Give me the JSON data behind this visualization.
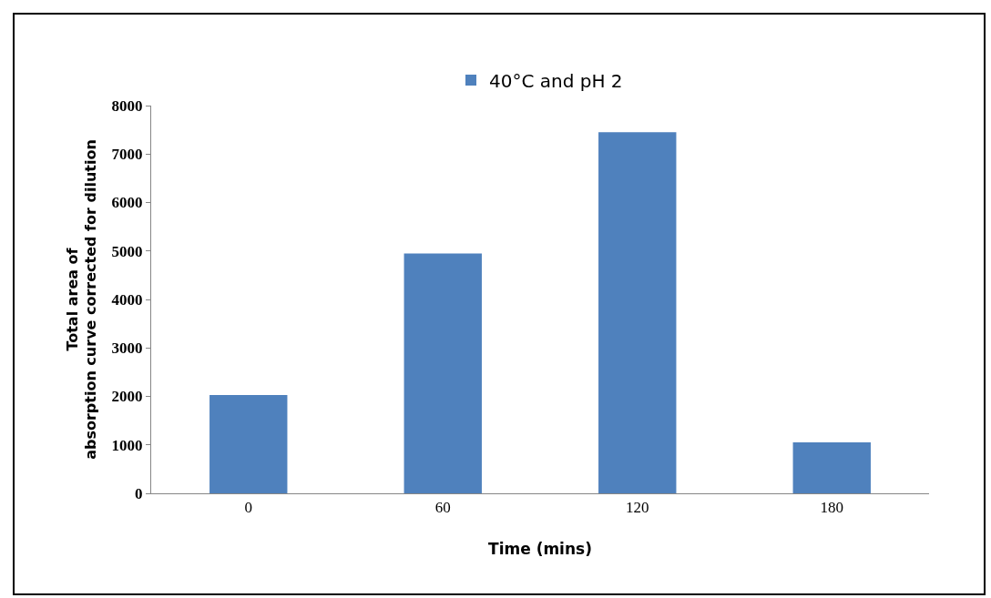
{
  "chart_data": {
    "type": "bar",
    "categories": [
      "0",
      "60",
      "120",
      "180"
    ],
    "series": [
      {
        "name": "40°C and pH 2",
        "color": "#4f81bd",
        "values": [
          2030,
          4950,
          7450,
          1050
        ]
      }
    ],
    "xlabel": "Time (mins)",
    "ylabel": "Total area of absorption curve corrected for dilution",
    "ylim": [
      0,
      8000
    ],
    "yticks": [
      0,
      1000,
      2000,
      3000,
      4000,
      5000,
      6000,
      7000,
      8000
    ],
    "grid": false,
    "legend": "top"
  }
}
